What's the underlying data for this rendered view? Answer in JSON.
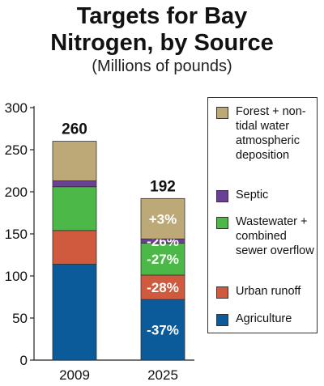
{
  "title_line1": "Targets for Bay",
  "title_line2": "Nitrogen, by Source",
  "subtitle": "(Millions of pounds)",
  "chart_data": {
    "type": "bar",
    "stacked": true,
    "categories": [
      "2009",
      "2025"
    ],
    "totals": [
      "260",
      "192"
    ],
    "ylim": [
      0,
      300
    ],
    "yticks": [
      0,
      50,
      100,
      150,
      200,
      250,
      300
    ],
    "xlabel": "",
    "ylabel": "",
    "grid": false,
    "legend_position": "right",
    "series": [
      {
        "name": "Agriculture",
        "color": "#0b5a9a",
        "values": [
          114,
          72
        ],
        "change_label": "-37%"
      },
      {
        "name": "Urban runoff",
        "color": "#cf5a3e",
        "values": [
          40,
          29
        ],
        "change_label": "-28%"
      },
      {
        "name": "Wastewater + combined sewer overflow",
        "color": "#4cb847",
        "values": [
          52,
          38
        ],
        "change_label": "-27%"
      },
      {
        "name": "Septic",
        "color": "#6a3f96",
        "values": [
          7,
          5
        ],
        "change_label": "-26%"
      },
      {
        "name": "Forest + non-tidal water atmospheric deposition",
        "color": "#bda978",
        "values": [
          47,
          48
        ],
        "change_label": "+3%"
      }
    ]
  },
  "legend": {
    "items": [
      {
        "label": "Forest + non-tidal water atmospheric deposition",
        "color": "#bda978"
      },
      {
        "label": "Septic",
        "color": "#6a3f96"
      },
      {
        "label": "Wastewater + combined sewer overflow",
        "color": "#4cb847"
      },
      {
        "label": "Urban runoff",
        "color": "#cf5a3e"
      },
      {
        "label": "Agriculture",
        "color": "#0b5a9a"
      }
    ]
  }
}
